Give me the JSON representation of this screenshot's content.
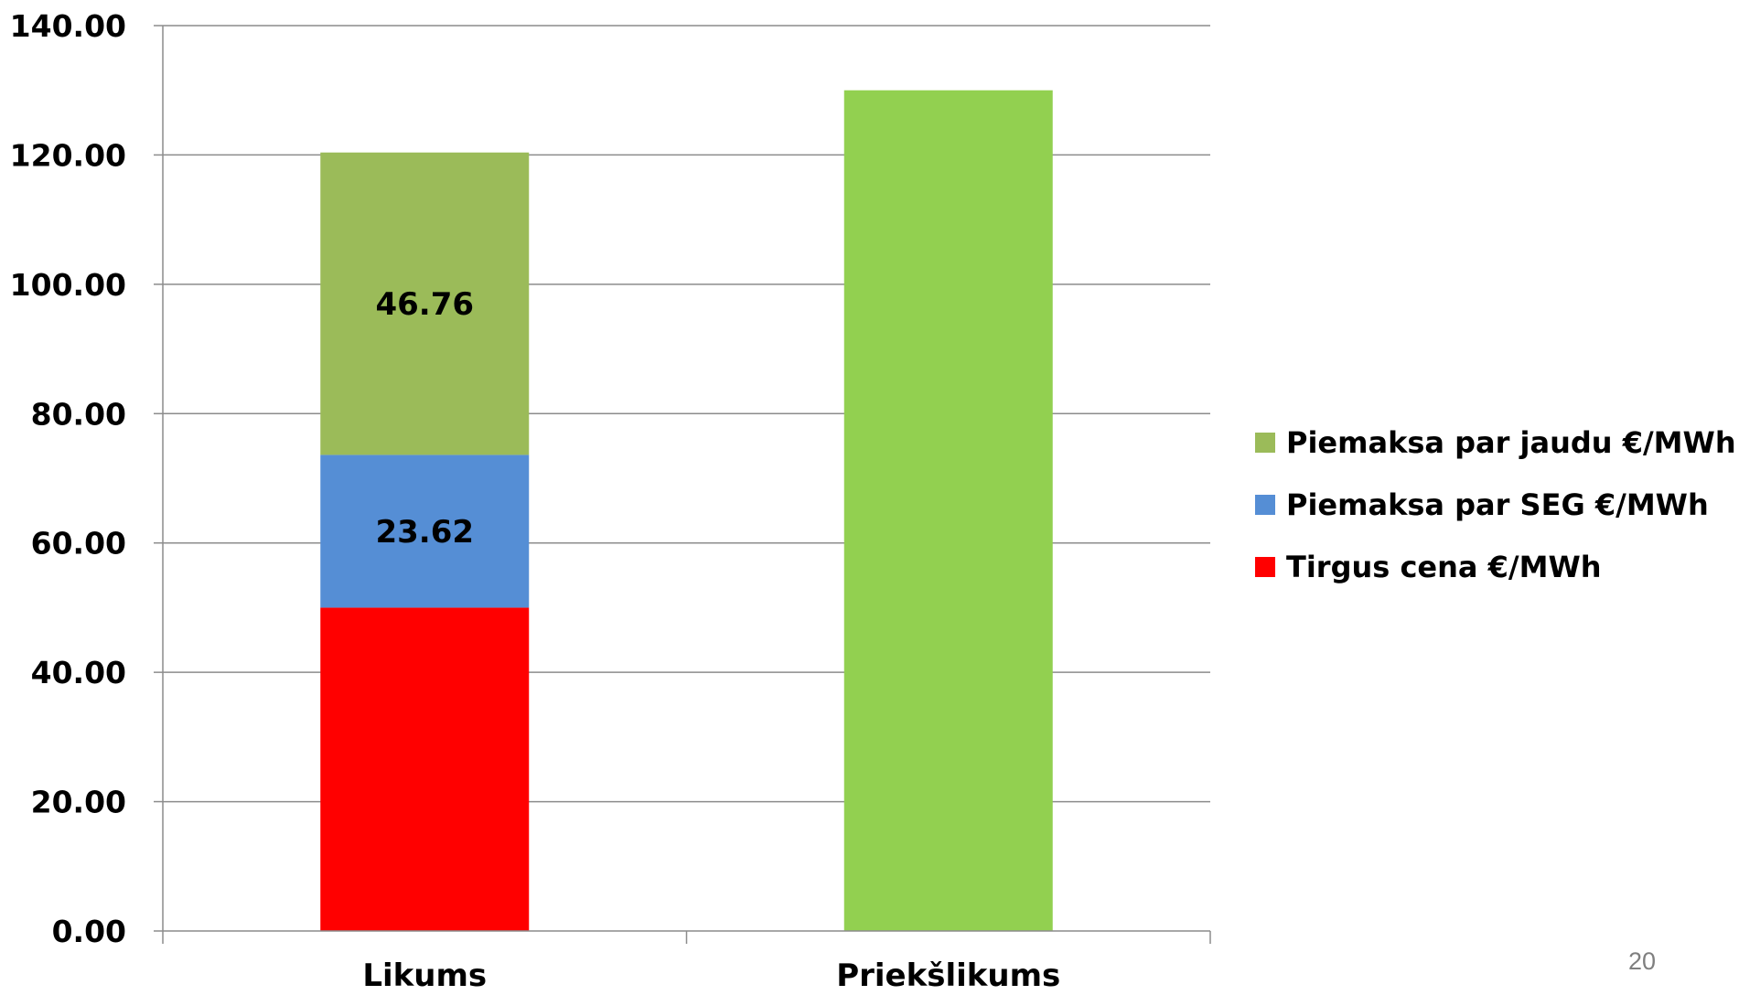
{
  "chart_data": {
    "type": "bar",
    "stacked": true,
    "categories": [
      "Likums",
      "Priekšlikums"
    ],
    "series": [
      {
        "name": "Tirgus cena €/MWh",
        "color": "#ff0000",
        "values": [
          50.0,
          null
        ]
      },
      {
        "name": "Piemaksa par SEG €/MWh",
        "color": "#558ed5",
        "values": [
          23.62,
          null
        ]
      },
      {
        "name": "Piemaksa par jaudu €/MWh",
        "color": "#9bbb59",
        "values": [
          46.76,
          null
        ]
      },
      {
        "name": "",
        "color": "#92d050",
        "values": [
          null,
          130.0
        ],
        "in_legend": false
      }
    ],
    "data_labels": [
      {
        "category": "Likums",
        "series": "Piemaksa par SEG €/MWh",
        "text": "23.62"
      },
      {
        "category": "Likums",
        "series": "Piemaksa par jaudu €/MWh",
        "text": "46.76"
      }
    ],
    "y_ticks": [
      "0.00",
      "20.00",
      "40.00",
      "60.00",
      "80.00",
      "100.00",
      "120.00",
      "140.00"
    ],
    "ylim": [
      0,
      140
    ],
    "y_tick_step": 20,
    "title": "",
    "xlabel": "",
    "ylabel": "",
    "grid": true,
    "legend": {
      "position": "right",
      "items": [
        "Piemaksa par jaudu €/MWh",
        "Piemaksa par SEG €/MWh",
        "Tirgus cena €/MWh"
      ]
    }
  },
  "page_number": "20"
}
